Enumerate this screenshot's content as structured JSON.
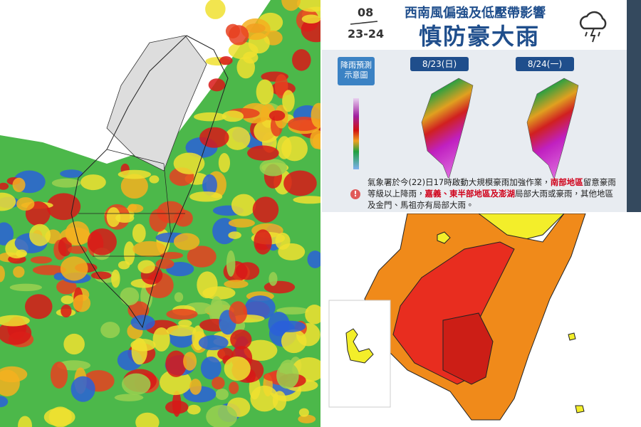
{
  "info": {
    "date_month": "08",
    "date_days": "23-24",
    "subtitle": "西南風偏強及低壓帶影響",
    "title": "慎防豪大雨",
    "tag": [
      "降雨預測",
      "示意圖"
    ],
    "days": [
      "8/23(日)",
      "8/24(一)"
    ],
    "notice": [
      "氣象署於今(22)日17時啟動大規模豪雨加強作業，",
      "南部地區",
      "留意豪雨等級以上降雨，",
      "嘉義、東半部地區及澎湖",
      "局部大雨或豪雨，其他地區及金門、馬祖亦有局部大雨。"
    ]
  }
}
